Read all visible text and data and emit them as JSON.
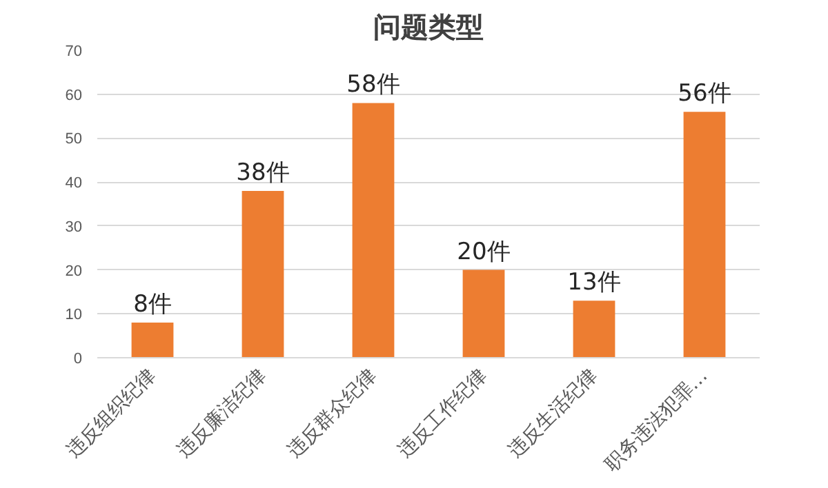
{
  "chart_data": {
    "type": "bar",
    "title": "问题类型",
    "categories": [
      "违反组织纪律",
      "违反廉洁纪律",
      "违反群众纪律",
      "违反工作纪律",
      "违反生活纪律",
      "职务违法犯罪…"
    ],
    "values": [
      8,
      38,
      58,
      20,
      13,
      56
    ],
    "value_labels": [
      "8件",
      "38件",
      "58件",
      "20件",
      "13件",
      "56件"
    ],
    "color": "#ed7d31",
    "ylim": [
      0,
      70
    ],
    "yticks": [
      0,
      10,
      20,
      30,
      40,
      50,
      60,
      70
    ],
    "grid": "y"
  }
}
